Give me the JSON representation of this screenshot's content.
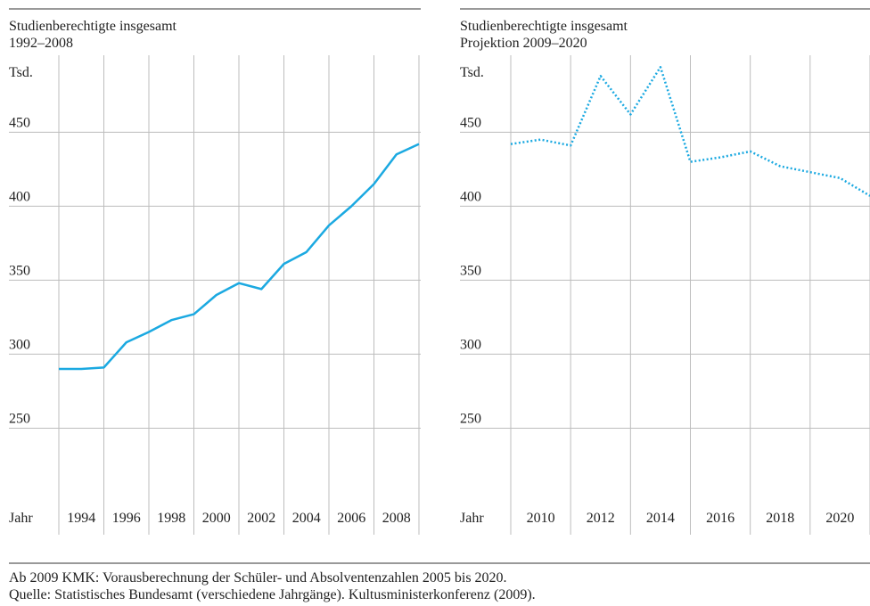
{
  "chart_data": [
    {
      "type": "line",
      "title": "Studienberechtigte insgesamt",
      "subtitle": "1992–2008",
      "y_label": "Tsd.",
      "x_label": "Jahr",
      "x": [
        1992,
        1993,
        1994,
        1995,
        1996,
        1997,
        1998,
        1999,
        2000,
        2001,
        2002,
        2003,
        2004,
        2005,
        2006,
        2007,
        2008
      ],
      "series": [
        {
          "color": "#1ba9e1",
          "line_style": "solid",
          "values": [
            290,
            290,
            291,
            308,
            315,
            323,
            327,
            340,
            348,
            344,
            361,
            369,
            387,
            400,
            415,
            435,
            442
          ]
        }
      ],
      "xlim": [
        1992,
        2008
      ],
      "xticks": [
        1994,
        1996,
        1998,
        2000,
        2002,
        2004,
        2006,
        2008
      ],
      "ylim": [
        178,
        502
      ],
      "yticks": [
        250,
        300,
        350,
        400,
        450
      ],
      "grid": true
    },
    {
      "type": "line",
      "title": "Studienberechtigte insgesamt",
      "subtitle": "Projektion 2009–2020",
      "y_label": "Tsd.",
      "x_label": "Jahr",
      "x": [
        2008,
        2009,
        2010,
        2011,
        2012,
        2013,
        2014,
        2015,
        2016,
        2017,
        2018,
        2019,
        2020
      ],
      "series": [
        {
          "color": "#1ba9e1",
          "line_style": "dotted",
          "values": [
            442,
            445,
            441,
            488,
            462,
            494,
            430,
            433,
            437,
            427,
            423,
            419,
            407
          ]
        }
      ],
      "xlim": [
        2008,
        2020
      ],
      "xticks": [
        2010,
        2012,
        2014,
        2016,
        2018,
        2020
      ],
      "ylim": [
        178,
        502
      ],
      "yticks": [
        250,
        300,
        350,
        400,
        450
      ],
      "grid": true
    }
  ],
  "notes": [
    "Ab 2009 KMK: Vorausberechnung der Schüler- und Absolventenzahlen 2005 bis 2020.",
    "Quelle: Statistisches Bundesamt (verschiedene Jahrgänge). Kultusministerkonferenz (2009)."
  ]
}
